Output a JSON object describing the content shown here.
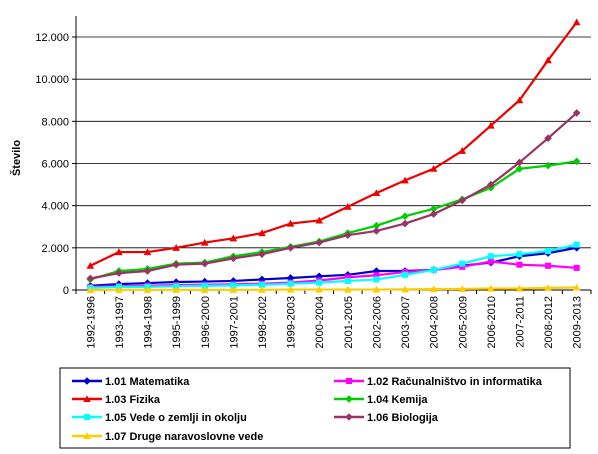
{
  "chart_data": {
    "type": "line",
    "ylabel": "Število",
    "ylim": [
      0,
      12000
    ],
    "yticks": [
      "0",
      "2.000",
      "4.000",
      "6.000",
      "8.000",
      "10.000",
      "12.000"
    ],
    "ytick_values": [
      0,
      2000,
      4000,
      6000,
      8000,
      10000,
      12000
    ],
    "grid": "horizontal",
    "legend_position": "bottom",
    "categories": [
      "1992-1996",
      "1993-1997",
      "1994-1998",
      "1995-1999",
      "1996-2000",
      "1997-2001",
      "1998-2002",
      "1999-2003",
      "2000-2004",
      "2001-2005",
      "2002-2006",
      "2003-2007",
      "2004-2008",
      "2005-2009",
      "2006-2010",
      "2007-2011",
      "2008-2012",
      "2009-2013"
    ],
    "series": [
      {
        "name": "1.01 Matematika",
        "color": "#0000cc",
        "marker": "diamond",
        "values": [
          200,
          280,
          330,
          380,
          400,
          430,
          500,
          570,
          650,
          720,
          900,
          900,
          950,
          1150,
          1300,
          1600,
          1750,
          2000
        ]
      },
      {
        "name": "1.02 Računalništvo in informatika",
        "color": "#ff00ff",
        "marker": "square",
        "values": [
          150,
          180,
          200,
          230,
          250,
          270,
          300,
          350,
          450,
          600,
          700,
          850,
          950,
          1100,
          1350,
          1200,
          1150,
          1050
        ]
      },
      {
        "name": "1.03 Fizika",
        "color": "#ee0000",
        "marker": "triangle",
        "values": [
          1150,
          1800,
          1800,
          2000,
          2250,
          2450,
          2700,
          3150,
          3300,
          3950,
          4600,
          5200,
          5750,
          6600,
          7800,
          9000,
          10900,
          12700
        ]
      },
      {
        "name": "1.04 Kemija",
        "color": "#00cc00",
        "marker": "diamond",
        "values": [
          500,
          900,
          1000,
          1250,
          1300,
          1600,
          1800,
          2050,
          2300,
          2700,
          3050,
          3500,
          3850,
          4300,
          4850,
          5750,
          5900,
          6100
        ]
      },
      {
        "name": "1.05 Vede o zemlji in okolju",
        "color": "#00ffff",
        "marker": "square",
        "values": [
          100,
          150,
          150,
          180,
          200,
          220,
          250,
          300,
          350,
          430,
          500,
          720,
          950,
          1250,
          1600,
          1700,
          1850,
          2150
        ]
      },
      {
        "name": "1.06 Biologija",
        "color": "#993366",
        "marker": "diamond",
        "values": [
          550,
          800,
          900,
          1200,
          1250,
          1500,
          1700,
          2000,
          2250,
          2600,
          2800,
          3150,
          3600,
          4250,
          5000,
          6050,
          7200,
          8400
        ]
      },
      {
        "name": "1.07 Druge naravoslovne vede",
        "color": "#ffcc00",
        "marker": "triangle",
        "values": [
          0,
          10,
          10,
          10,
          10,
          10,
          10,
          20,
          20,
          20,
          20,
          30,
          40,
          50,
          70,
          70,
          100,
          120
        ]
      }
    ]
  }
}
